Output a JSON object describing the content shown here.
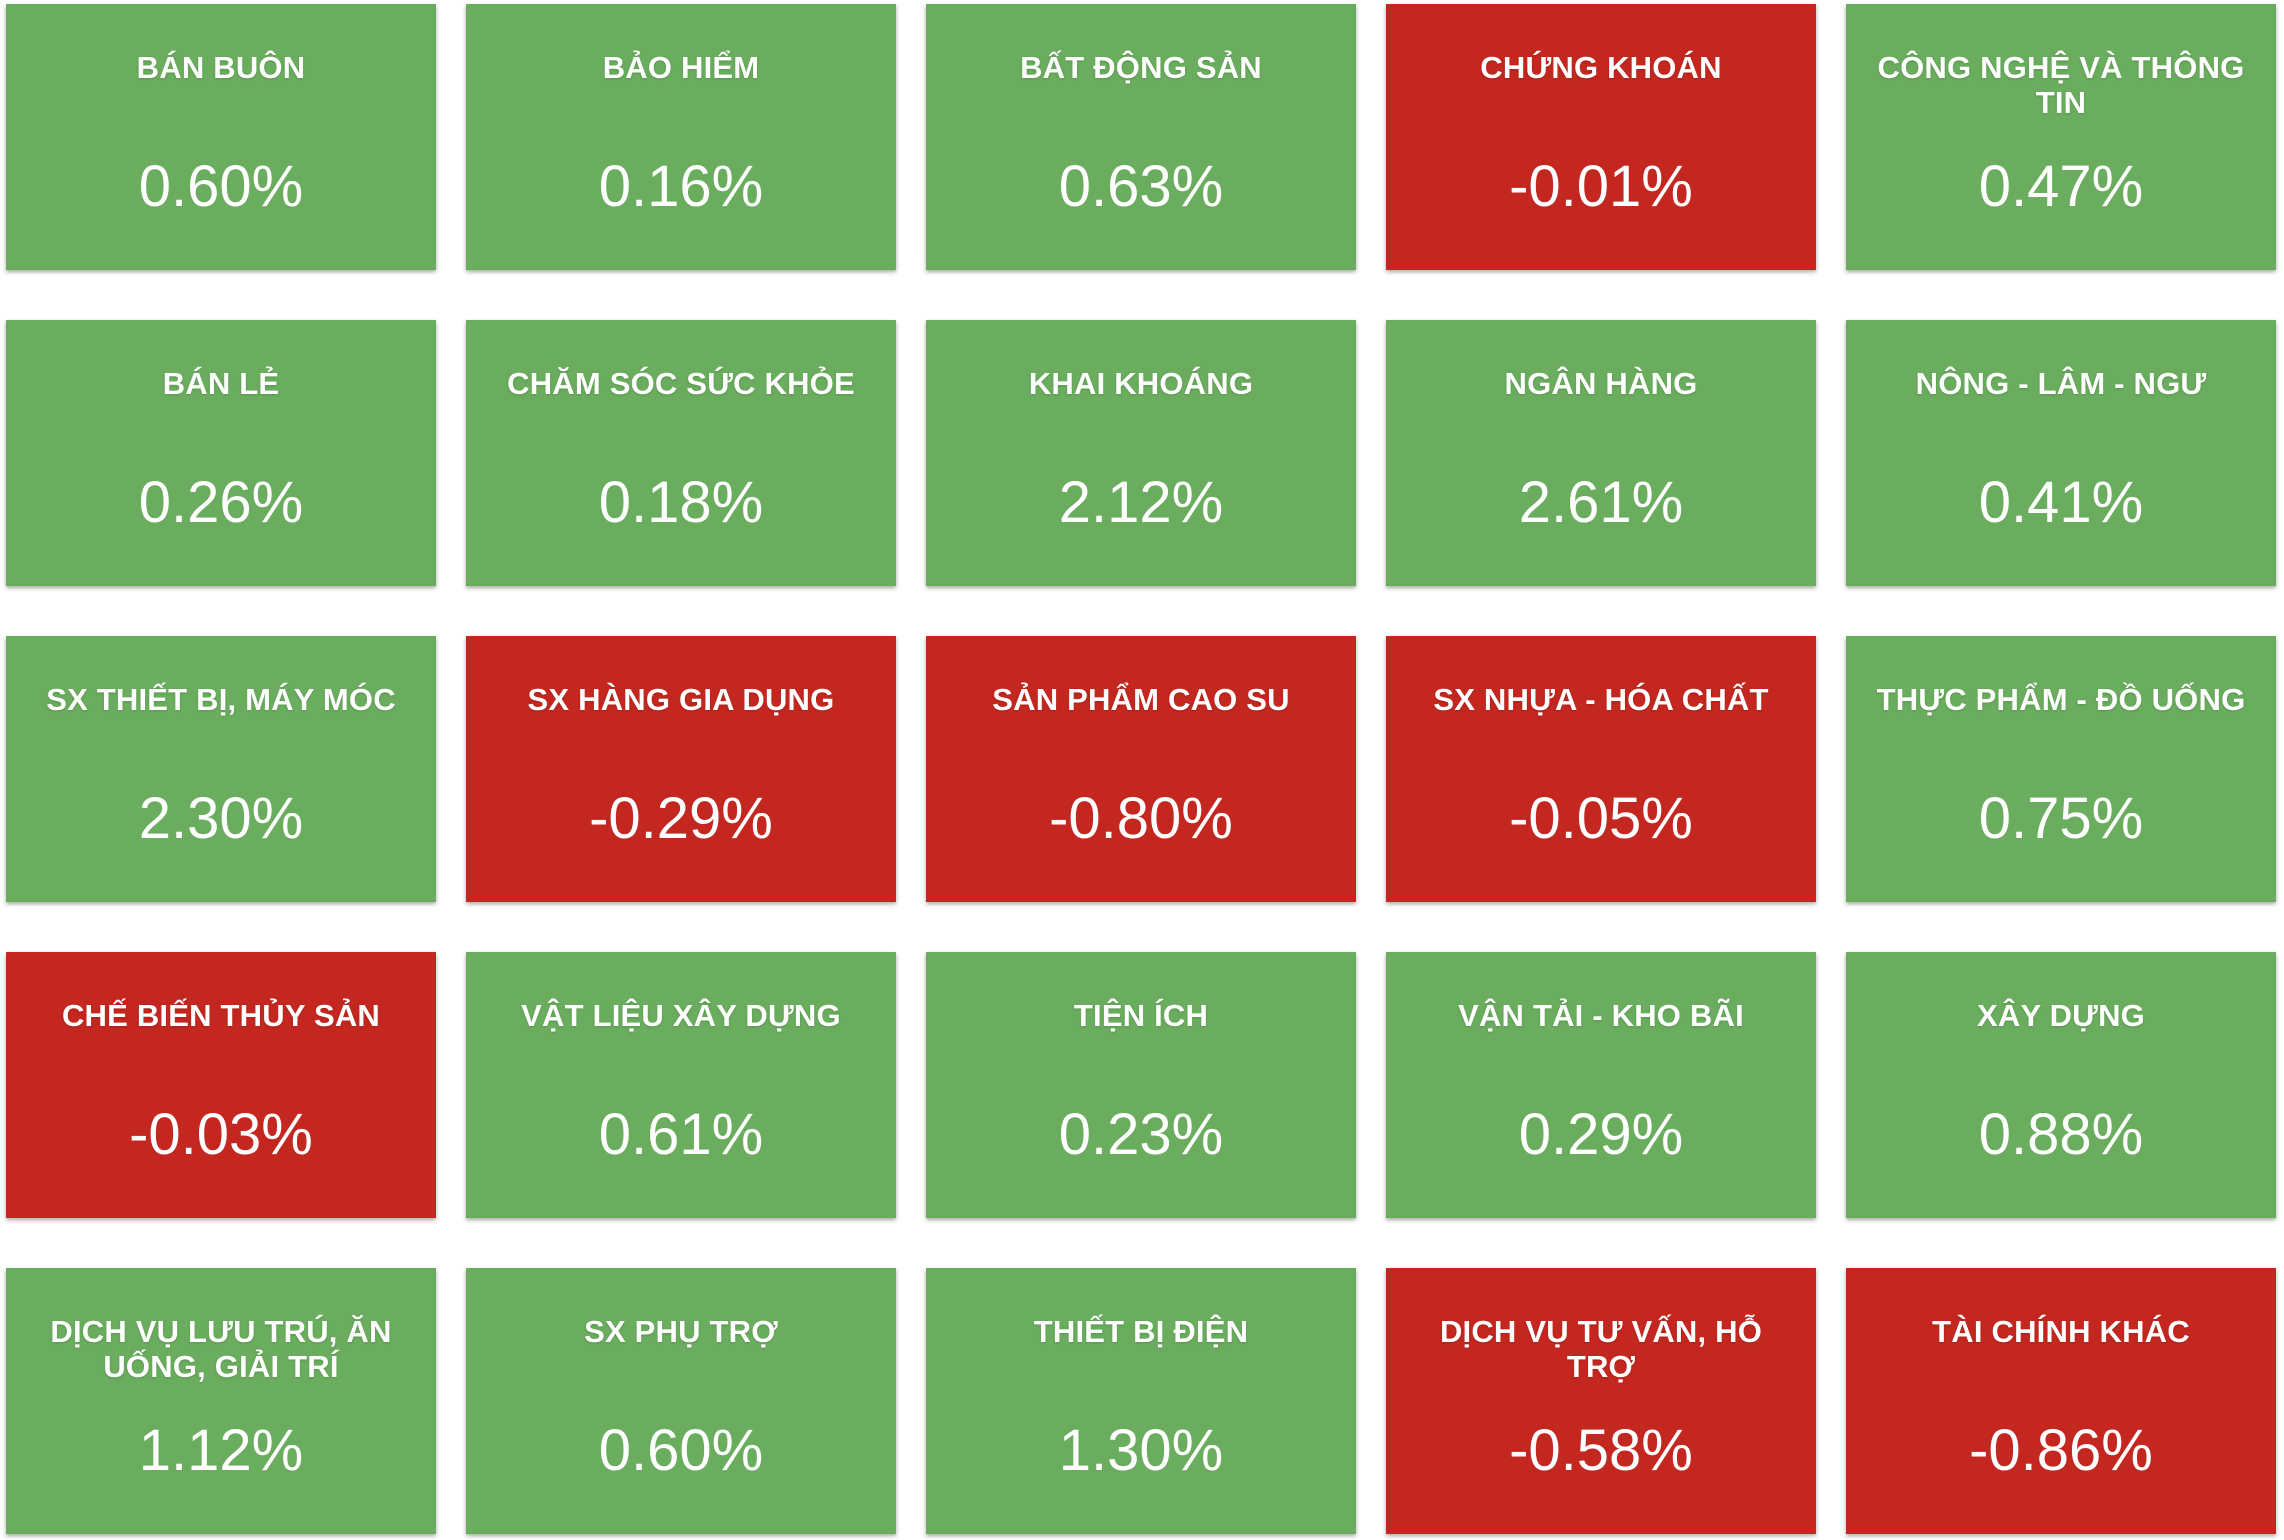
{
  "colors": {
    "up": "#6aad5e",
    "down": "#c4271f"
  },
  "sectors": [
    {
      "name": "BÁN BUÔN",
      "value": "0.60%",
      "trend": "up"
    },
    {
      "name": "BẢO HIỂM",
      "value": "0.16%",
      "trend": "up"
    },
    {
      "name": "BẤT ĐỘNG SẢN",
      "value": "0.63%",
      "trend": "up"
    },
    {
      "name": "CHỨNG KHOÁN",
      "value": "-0.01%",
      "trend": "down"
    },
    {
      "name": "CÔNG NGHỆ VÀ THÔNG TIN",
      "value": "0.47%",
      "trend": "up"
    },
    {
      "name": "BÁN LẺ",
      "value": "0.26%",
      "trend": "up"
    },
    {
      "name": "CHĂM SÓC SỨC KHỎE",
      "value": "0.18%",
      "trend": "up"
    },
    {
      "name": "KHAI KHOÁNG",
      "value": "2.12%",
      "trend": "up"
    },
    {
      "name": "NGÂN HÀNG",
      "value": "2.61%",
      "trend": "up"
    },
    {
      "name": "NÔNG - LÂM - NGƯ",
      "value": "0.41%",
      "trend": "up"
    },
    {
      "name": "SX THIẾT BỊ, MÁY MÓC",
      "value": "2.30%",
      "trend": "up"
    },
    {
      "name": "SX HÀNG GIA DỤNG",
      "value": "-0.29%",
      "trend": "down"
    },
    {
      "name": "SẢN PHẨM CAO SU",
      "value": "-0.80%",
      "trend": "down"
    },
    {
      "name": "SX NHỰA - HÓA CHẤT",
      "value": "-0.05%",
      "trend": "down"
    },
    {
      "name": "THỰC PHẨM - ĐỒ UỐNG",
      "value": "0.75%",
      "trend": "up"
    },
    {
      "name": "CHẾ BIẾN THỦY SẢN",
      "value": "-0.03%",
      "trend": "down"
    },
    {
      "name": "VẬT LIỆU XÂY DỰNG",
      "value": "0.61%",
      "trend": "up"
    },
    {
      "name": "TIỆN ÍCH",
      "value": "0.23%",
      "trend": "up"
    },
    {
      "name": "VẬN TẢI - KHO BÃI",
      "value": "0.29%",
      "trend": "up"
    },
    {
      "name": "XÂY DỰNG",
      "value": "0.88%",
      "trend": "up"
    },
    {
      "name": "DỊCH VỤ LƯU TRÚ, ĂN UỐNG, GIẢI TRÍ",
      "value": "1.12%",
      "trend": "up"
    },
    {
      "name": "SX PHỤ TRỢ",
      "value": "0.60%",
      "trend": "up"
    },
    {
      "name": "THIẾT BỊ ĐIỆN",
      "value": "1.30%",
      "trend": "up"
    },
    {
      "name": "DỊCH VỤ TƯ VẤN, HỖ TRỢ",
      "value": "-0.58%",
      "trend": "down"
    },
    {
      "name": "TÀI CHÍNH KHÁC",
      "value": "-0.86%",
      "trend": "down"
    }
  ]
}
